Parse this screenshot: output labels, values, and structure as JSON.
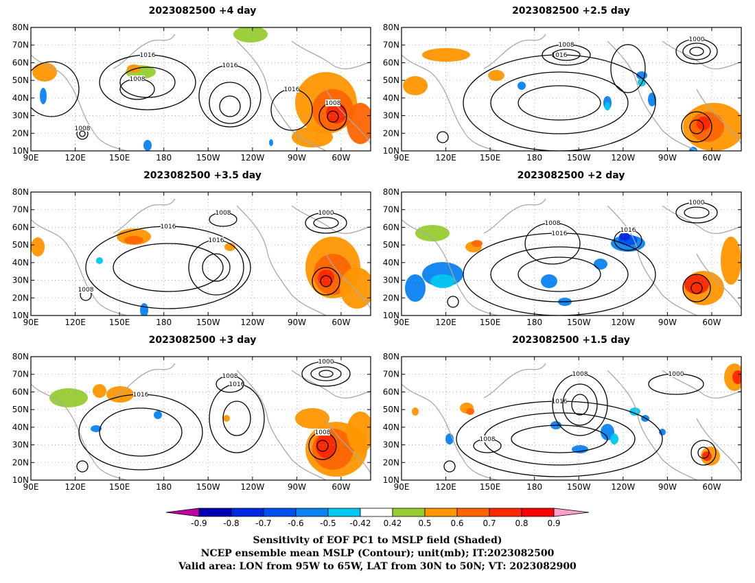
{
  "panels": [
    {
      "title": "2023082500 +4 day"
    },
    {
      "title": "2023082500 +2.5 day"
    },
    {
      "title": "2023082500 +3.5 day"
    },
    {
      "title": "2023082500 +2 day"
    },
    {
      "title": "2023082500 +3 day"
    },
    {
      "title": "2023082500 +1.5 day"
    }
  ],
  "axes": {
    "lat_ticks": [
      "80N",
      "70N",
      "60N",
      "50N",
      "40N",
      "30N",
      "20N",
      "10N"
    ],
    "lon_ticks": [
      "90E",
      "120E",
      "150E",
      "180",
      "150W",
      "120W",
      "90W",
      "60W"
    ],
    "lat_range": [
      10,
      80
    ],
    "lon_range_deg_east": [
      90,
      320
    ]
  },
  "colorbar": {
    "labels": [
      "-0.9",
      "-0.8",
      "-0.7",
      "-0.6",
      "-0.5",
      "-0.42",
      "0.42",
      "0.5",
      "0.6",
      "0.7",
      "0.8",
      "0.9"
    ],
    "colors": [
      "#c000a0",
      "#0000b4",
      "#0028e0",
      "#0050f0",
      "#0a82f0",
      "#00c8f0",
      "#ffffff",
      "#96cd32",
      "#ff9600",
      "#ff6400",
      "#ff2800",
      "#ff0000",
      "#ffa0c8"
    ]
  },
  "contour_labels": [
    "1000",
    "1008",
    "1016"
  ],
  "caption": [
    "Sensitivity of EOF PC1 to MSLP field (Shaded)",
    "NCEP ensemble mean MSLP (Contour); unit(mb); IT:2023082500",
    "Valid area: LON from 95W to 65W, LAT from 30N to 50N; VT: 2023082900"
  ]
}
